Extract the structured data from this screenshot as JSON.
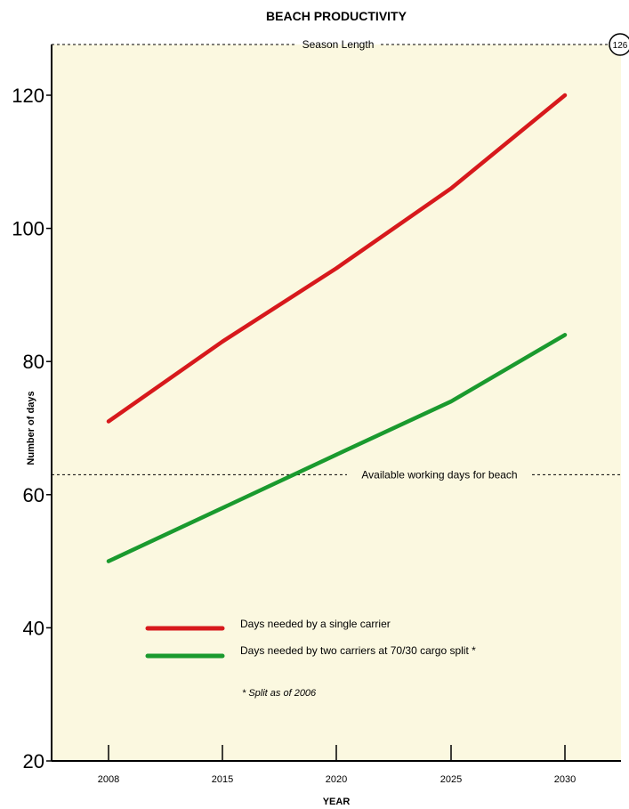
{
  "chart_data": {
    "type": "line",
    "title": "BEACH PRODUCTIVITY",
    "xlabel": "YEAR",
    "ylabel": "Number of days",
    "categories": [
      "2008",
      "2015",
      "2020",
      "2025",
      "2030"
    ],
    "x": [
      2008,
      2015,
      2020,
      2025,
      2030
    ],
    "ylim": [
      20,
      126
    ],
    "yticks": [
      "20",
      "40",
      "60",
      "80",
      "100",
      "120"
    ],
    "grid": false,
    "series": [
      {
        "name": "Days needed by a single carrier",
        "color": "#d7191c",
        "values": [
          71,
          83,
          94,
          106,
          120
        ]
      },
      {
        "name": "Days needed by two carriers at 70/30 cargo split *",
        "color": "#1a9a2e",
        "values": [
          50,
          58,
          66,
          74,
          84
        ]
      }
    ],
    "reference_lines": [
      {
        "label": "Season Length",
        "value": 126,
        "badge": "126"
      },
      {
        "label": "Available working days for beach",
        "value": 63
      }
    ],
    "footnote": "* Split as of 2006",
    "colors": {
      "background": "#fbf8e0",
      "axis": "#000000"
    }
  }
}
